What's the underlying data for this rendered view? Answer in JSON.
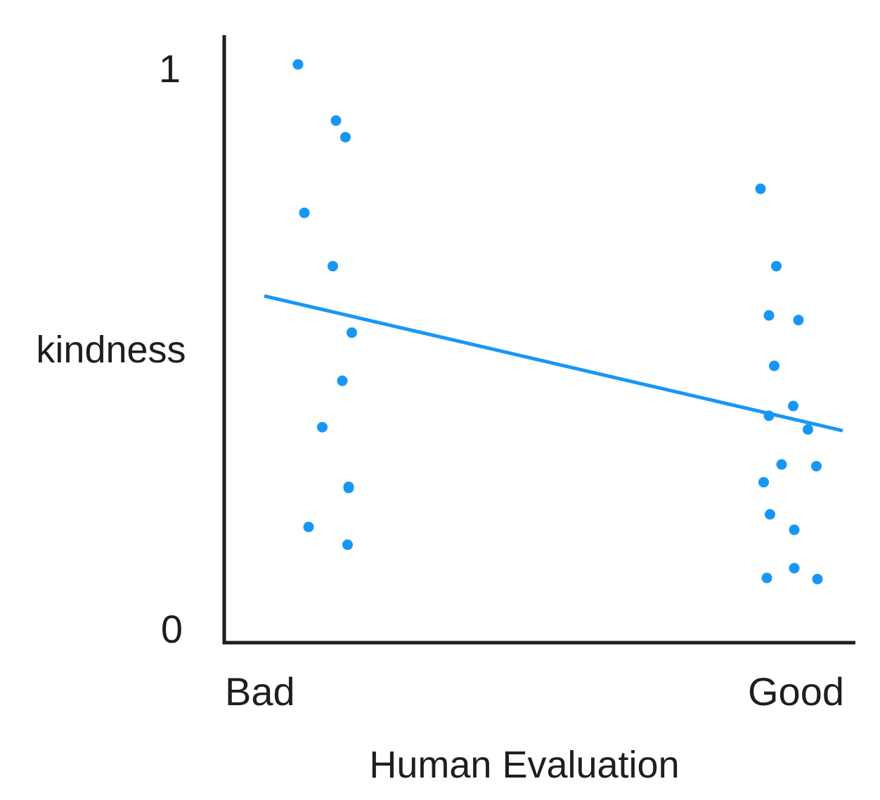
{
  "chart_data": {
    "type": "scatter",
    "title": "",
    "xlabel": "Human Evaluation",
    "ylabel": "kindness",
    "x_categories": [
      "Bad",
      "Good"
    ],
    "y_ticks": [
      "0",
      "1"
    ],
    "ylim": [
      0,
      1
    ],
    "grid": false,
    "point_color": "#1797f5",
    "line_color": "#1797f5",
    "axis_color": "#1e1e1e",
    "series": [
      {
        "category": "Bad",
        "points": [
          {
            "jitter": -0.28,
            "y": 0.993
          },
          {
            "jitter": 0.08,
            "y": 0.895
          },
          {
            "jitter": 0.17,
            "y": 0.866
          },
          {
            "jitter": -0.22,
            "y": 0.734
          },
          {
            "jitter": 0.05,
            "y": 0.641
          },
          {
            "jitter": 0.23,
            "y": 0.525
          },
          {
            "jitter": 0.14,
            "y": 0.441
          },
          {
            "jitter": -0.05,
            "y": 0.36
          },
          {
            "jitter": 0.2,
            "y": 0.256
          },
          {
            "jitter": 0.2,
            "y": 0.254
          },
          {
            "jitter": -0.18,
            "y": 0.186
          },
          {
            "jitter": 0.19,
            "y": 0.155
          }
        ]
      },
      {
        "category": "Good",
        "points": [
          {
            "jitter": -0.28,
            "y": 0.776
          },
          {
            "jitter": -0.13,
            "y": 0.641
          },
          {
            "jitter": -0.2,
            "y": 0.555
          },
          {
            "jitter": 0.08,
            "y": 0.547
          },
          {
            "jitter": -0.15,
            "y": 0.467
          },
          {
            "jitter": 0.03,
            "y": 0.397
          },
          {
            "jitter": -0.2,
            "y": 0.38
          },
          {
            "jitter": 0.17,
            "y": 0.356
          },
          {
            "jitter": -0.08,
            "y": 0.295
          },
          {
            "jitter": 0.25,
            "y": 0.292
          },
          {
            "jitter": -0.25,
            "y": 0.264
          },
          {
            "jitter": -0.19,
            "y": 0.208
          },
          {
            "jitter": 0.04,
            "y": 0.181
          },
          {
            "jitter": -0.22,
            "y": 0.097
          },
          {
            "jitter": 0.04,
            "y": 0.114
          },
          {
            "jitter": 0.26,
            "y": 0.095
          }
        ]
      }
    ],
    "trend_line": {
      "start": {
        "category": "Bad",
        "offset": -0.6,
        "y": 0.589
      },
      "end": {
        "category": "Good",
        "offset": 0.5,
        "y": 0.354
      }
    }
  }
}
